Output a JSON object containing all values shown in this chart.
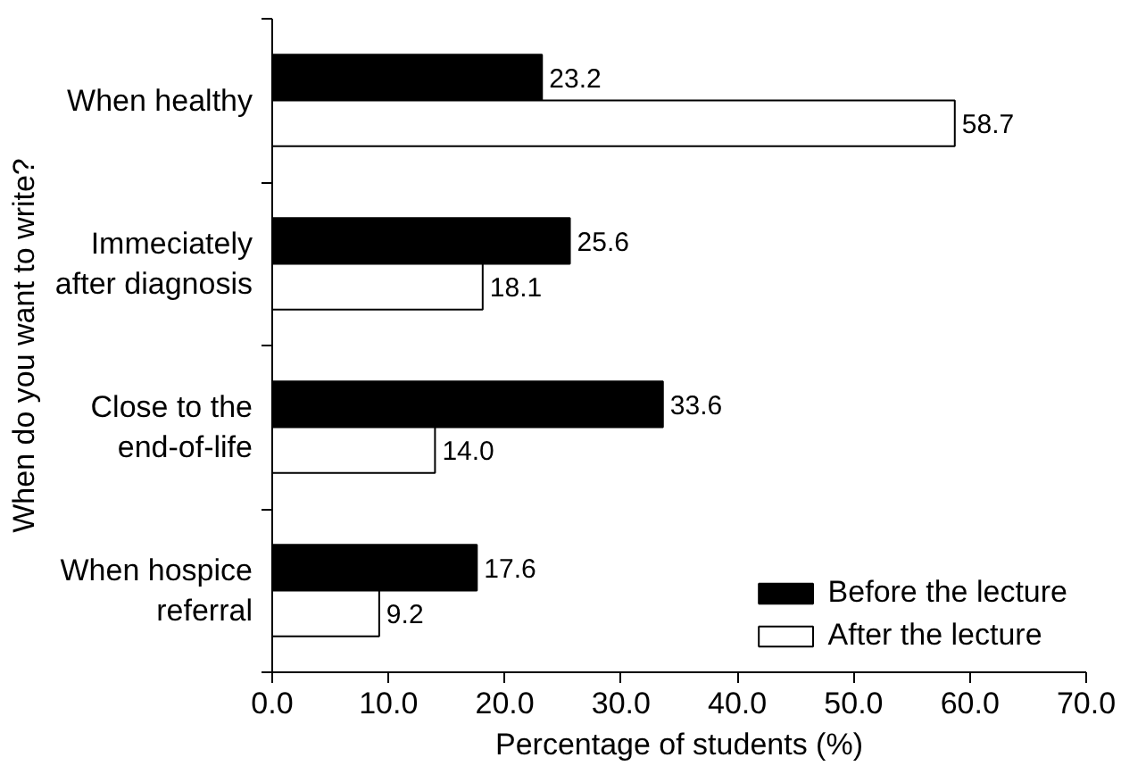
{
  "chart_data": {
    "type": "bar",
    "orientation": "horizontal",
    "ylabel": "When do you want to write?",
    "xlabel": "Percentage of students (%)",
    "categories": [
      "When healthy",
      "Immeciately\nafter diagnosis",
      "Close to the\nend-of-life",
      "When hospice\nreferral"
    ],
    "series": [
      {
        "name": "Before the lecture",
        "color": "#000000",
        "values": [
          23.2,
          25.6,
          33.6,
          17.6
        ],
        "value_labels": [
          "23.2",
          "25.6",
          "33.6",
          "17.6"
        ]
      },
      {
        "name": "After the lecture",
        "color": "#ffffff",
        "values": [
          58.7,
          18.1,
          14.0,
          9.2
        ],
        "value_labels": [
          "58.7",
          "18.1",
          "14.0",
          "9.2"
        ]
      }
    ],
    "xlim": [
      0,
      70
    ],
    "xticks": [
      {
        "value": 0,
        "label": "0.0"
      },
      {
        "value": 10,
        "label": "10.0"
      },
      {
        "value": 20,
        "label": "20.0"
      },
      {
        "value": 30,
        "label": "30.0"
      },
      {
        "value": 40,
        "label": "40.0"
      },
      {
        "value": 50,
        "label": "50.0"
      },
      {
        "value": 60,
        "label": "60.0"
      },
      {
        "value": 70,
        "label": "70.0"
      }
    ],
    "grid": false,
    "legend": "bottom right"
  }
}
